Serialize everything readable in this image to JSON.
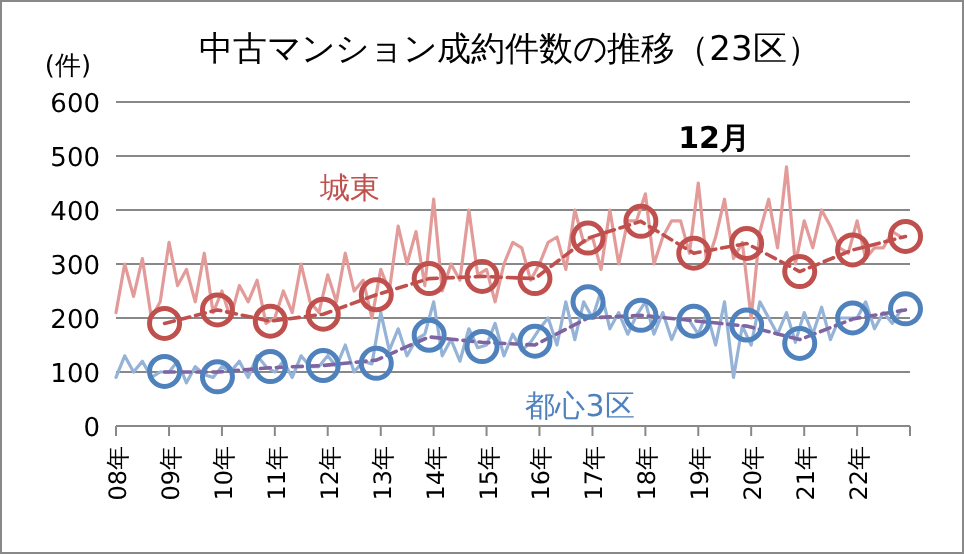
{
  "chart_data": {
    "type": "line",
    "title": "中古マンション成約件数の推移（23区）",
    "ylabel": "(件)",
    "ylim": [
      0,
      600
    ],
    "yticks": [
      0,
      100,
      200,
      300,
      400,
      500,
      600
    ],
    "xlim": [
      "2008-01",
      "2023-01"
    ],
    "xticks": [
      {
        "value": "2008-01",
        "label": "08年"
      },
      {
        "value": "2009-01",
        "label": "09年"
      },
      {
        "value": "2010-01",
        "label": "10年"
      },
      {
        "value": "2011-01",
        "label": "11年"
      },
      {
        "value": "2012-01",
        "label": "12年"
      },
      {
        "value": "2013-01",
        "label": "13年"
      },
      {
        "value": "2014-01",
        "label": "14年"
      },
      {
        "value": "2015-01",
        "label": "15年"
      },
      {
        "value": "2016-01",
        "label": "16年"
      },
      {
        "value": "2017-01",
        "label": "17年"
      },
      {
        "value": "2018-01",
        "label": "18年"
      },
      {
        "value": "2019-01",
        "label": "19年"
      },
      {
        "value": "2020-01",
        "label": "20年"
      },
      {
        "value": "2021-01",
        "label": "21年"
      },
      {
        "value": "2022-01",
        "label": "22年"
      },
      {
        "value": "2023-01",
        "label": null
      }
    ],
    "grid": "y",
    "annotations": [
      "12月"
    ],
    "series": [
      {
        "color": "#e39b9a",
        "x": [
          "2008-01",
          "2008-03",
          "2008-05",
          "2008-07",
          "2008-09",
          "2008-11",
          "2009-01",
          "2009-03",
          "2009-05",
          "2009-07",
          "2009-09",
          "2009-11",
          "2010-01",
          "2010-03",
          "2010-05",
          "2010-07",
          "2010-09",
          "2010-11",
          "2011-01",
          "2011-03",
          "2011-05",
          "2011-07",
          "2011-09",
          "2011-11",
          "2012-01",
          "2012-03",
          "2012-05",
          "2012-07",
          "2012-09",
          "2012-11",
          "2013-01",
          "2013-03",
          "2013-05",
          "2013-07",
          "2013-09",
          "2013-11",
          "2014-01",
          "2014-03",
          "2014-05",
          "2014-07",
          "2014-09",
          "2014-11",
          "2015-01",
          "2015-03",
          "2015-05",
          "2015-07",
          "2015-09",
          "2015-11",
          "2016-01",
          "2016-03",
          "2016-05",
          "2016-07",
          "2016-09",
          "2016-11",
          "2017-01",
          "2017-03",
          "2017-05",
          "2017-07",
          "2017-09",
          "2017-11",
          "2018-01",
          "2018-03",
          "2018-05",
          "2018-07",
          "2018-09",
          "2018-11",
          "2019-01",
          "2019-03",
          "2019-05",
          "2019-07",
          "2019-09",
          "2019-11",
          "2020-01",
          "2020-03",
          "2020-05",
          "2020-07",
          "2020-09",
          "2020-11",
          "2021-01",
          "2021-03",
          "2021-05",
          "2021-07",
          "2021-09",
          "2021-11",
          "2022-01",
          "2022-03",
          "2022-05",
          "2022-07",
          "2022-09",
          "2022-11"
        ],
        "values": [
          210,
          300,
          240,
          310,
          200,
          230,
          340,
          260,
          290,
          230,
          320,
          210,
          250,
          200,
          260,
          230,
          270,
          190,
          200,
          250,
          210,
          300,
          230,
          210,
          280,
          230,
          320,
          250,
          270,
          200,
          290,
          250,
          370,
          300,
          360,
          260,
          420,
          250,
          300,
          270,
          400,
          280,
          290,
          230,
          300,
          340,
          330,
          270,
          300,
          340,
          350,
          290,
          400,
          340,
          350,
          290,
          400,
          300,
          380,
          380,
          430,
          300,
          350,
          380,
          380,
          320,
          450,
          300,
          350,
          420,
          310,
          340,
          200,
          360,
          420,
          330,
          480,
          300,
          380,
          330,
          400,
          370,
          330,
          320,
          380,
          310,
          330,
          330,
          360,
          350
        ]
      },
      {
        "color": "#95b3d7",
        "x": [
          "2008-01",
          "2008-03",
          "2008-05",
          "2008-07",
          "2008-09",
          "2008-11",
          "2009-01",
          "2009-03",
          "2009-05",
          "2009-07",
          "2009-09",
          "2009-11",
          "2010-01",
          "2010-03",
          "2010-05",
          "2010-07",
          "2010-09",
          "2010-11",
          "2011-01",
          "2011-03",
          "2011-05",
          "2011-07",
          "2011-09",
          "2011-11",
          "2012-01",
          "2012-03",
          "2012-05",
          "2012-07",
          "2012-09",
          "2012-11",
          "2013-01",
          "2013-03",
          "2013-05",
          "2013-07",
          "2013-09",
          "2013-11",
          "2014-01",
          "2014-03",
          "2014-05",
          "2014-07",
          "2014-09",
          "2014-11",
          "2015-01",
          "2015-03",
          "2015-05",
          "2015-07",
          "2015-09",
          "2015-11",
          "2016-01",
          "2016-03",
          "2016-05",
          "2016-07",
          "2016-09",
          "2016-11",
          "2017-01",
          "2017-03",
          "2017-05",
          "2017-07",
          "2017-09",
          "2017-11",
          "2018-01",
          "2018-03",
          "2018-05",
          "2018-07",
          "2018-09",
          "2018-11",
          "2019-01",
          "2019-03",
          "2019-05",
          "2019-07",
          "2019-09",
          "2019-11",
          "2020-01",
          "2020-03",
          "2020-05",
          "2020-07",
          "2020-09",
          "2020-11",
          "2021-01",
          "2021-03",
          "2021-05",
          "2021-07",
          "2021-09",
          "2021-11",
          "2022-01",
          "2022-03",
          "2022-05",
          "2022-07",
          "2022-09",
          "2022-11"
        ],
        "values": [
          90,
          130,
          100,
          120,
          90,
          100,
          100,
          120,
          80,
          110,
          95,
          90,
          110,
          100,
          120,
          90,
          130,
          110,
          100,
          120,
          90,
          130,
          110,
          110,
          130,
          110,
          150,
          100,
          120,
          115,
          210,
          140,
          180,
          130,
          160,
          170,
          230,
          130,
          160,
          120,
          180,
          145,
          150,
          190,
          130,
          170,
          140,
          155,
          180,
          200,
          150,
          230,
          160,
          230,
          200,
          250,
          180,
          210,
          170,
          205,
          230,
          170,
          210,
          160,
          200,
          195,
          170,
          210,
          150,
          230,
          90,
          185,
          150,
          230,
          200,
          170,
          210,
          155,
          210,
          170,
          220,
          160,
          200,
          200,
          200,
          230,
          180,
          210,
          190,
          215
        ]
      },
      {
        "color": "#8064a2",
        "line_style": "dashed",
        "x": [
          "2008-12",
          "2009-12",
          "2010-12",
          "2011-12",
          "2012-12",
          "2013-12",
          "2014-12",
          "2015-12",
          "2016-12",
          "2017-12",
          "2018-12",
          "2019-12",
          "2020-12",
          "2021-12",
          "2022-12"
        ],
        "values": [
          100,
          100,
          108,
          112,
          122,
          165,
          155,
          150,
          200,
          205,
          195,
          185,
          160,
          198,
          215
        ]
      },
      {
        "name": "城東",
        "color": "#c0504d",
        "line_style": "dashed",
        "marker": "circle",
        "x": [
          "2008-12",
          "2009-12",
          "2010-12",
          "2011-12",
          "2012-12",
          "2013-12",
          "2014-12",
          "2015-12",
          "2016-12",
          "2017-12",
          "2018-12",
          "2019-12",
          "2020-12",
          "2021-12",
          "2022-12"
        ],
        "values": [
          190,
          215,
          194,
          207,
          243,
          273,
          277,
          273,
          348,
          379,
          320,
          338,
          286,
          326,
          351
        ]
      },
      {
        "name": "都心3区",
        "type": "scatter",
        "color": "#4f81bd",
        "marker": "circle",
        "x": [
          "2008-12",
          "2009-12",
          "2010-12",
          "2011-12",
          "2012-12",
          "2013-12",
          "2014-12",
          "2015-12",
          "2016-12",
          "2017-12",
          "2018-12",
          "2019-12",
          "2020-12",
          "2021-12",
          "2022-12"
        ],
        "values": [
          101,
          91,
          110,
          112,
          116,
          168,
          147,
          157,
          230,
          205,
          194,
          187,
          153,
          200,
          217
        ]
      }
    ]
  }
}
